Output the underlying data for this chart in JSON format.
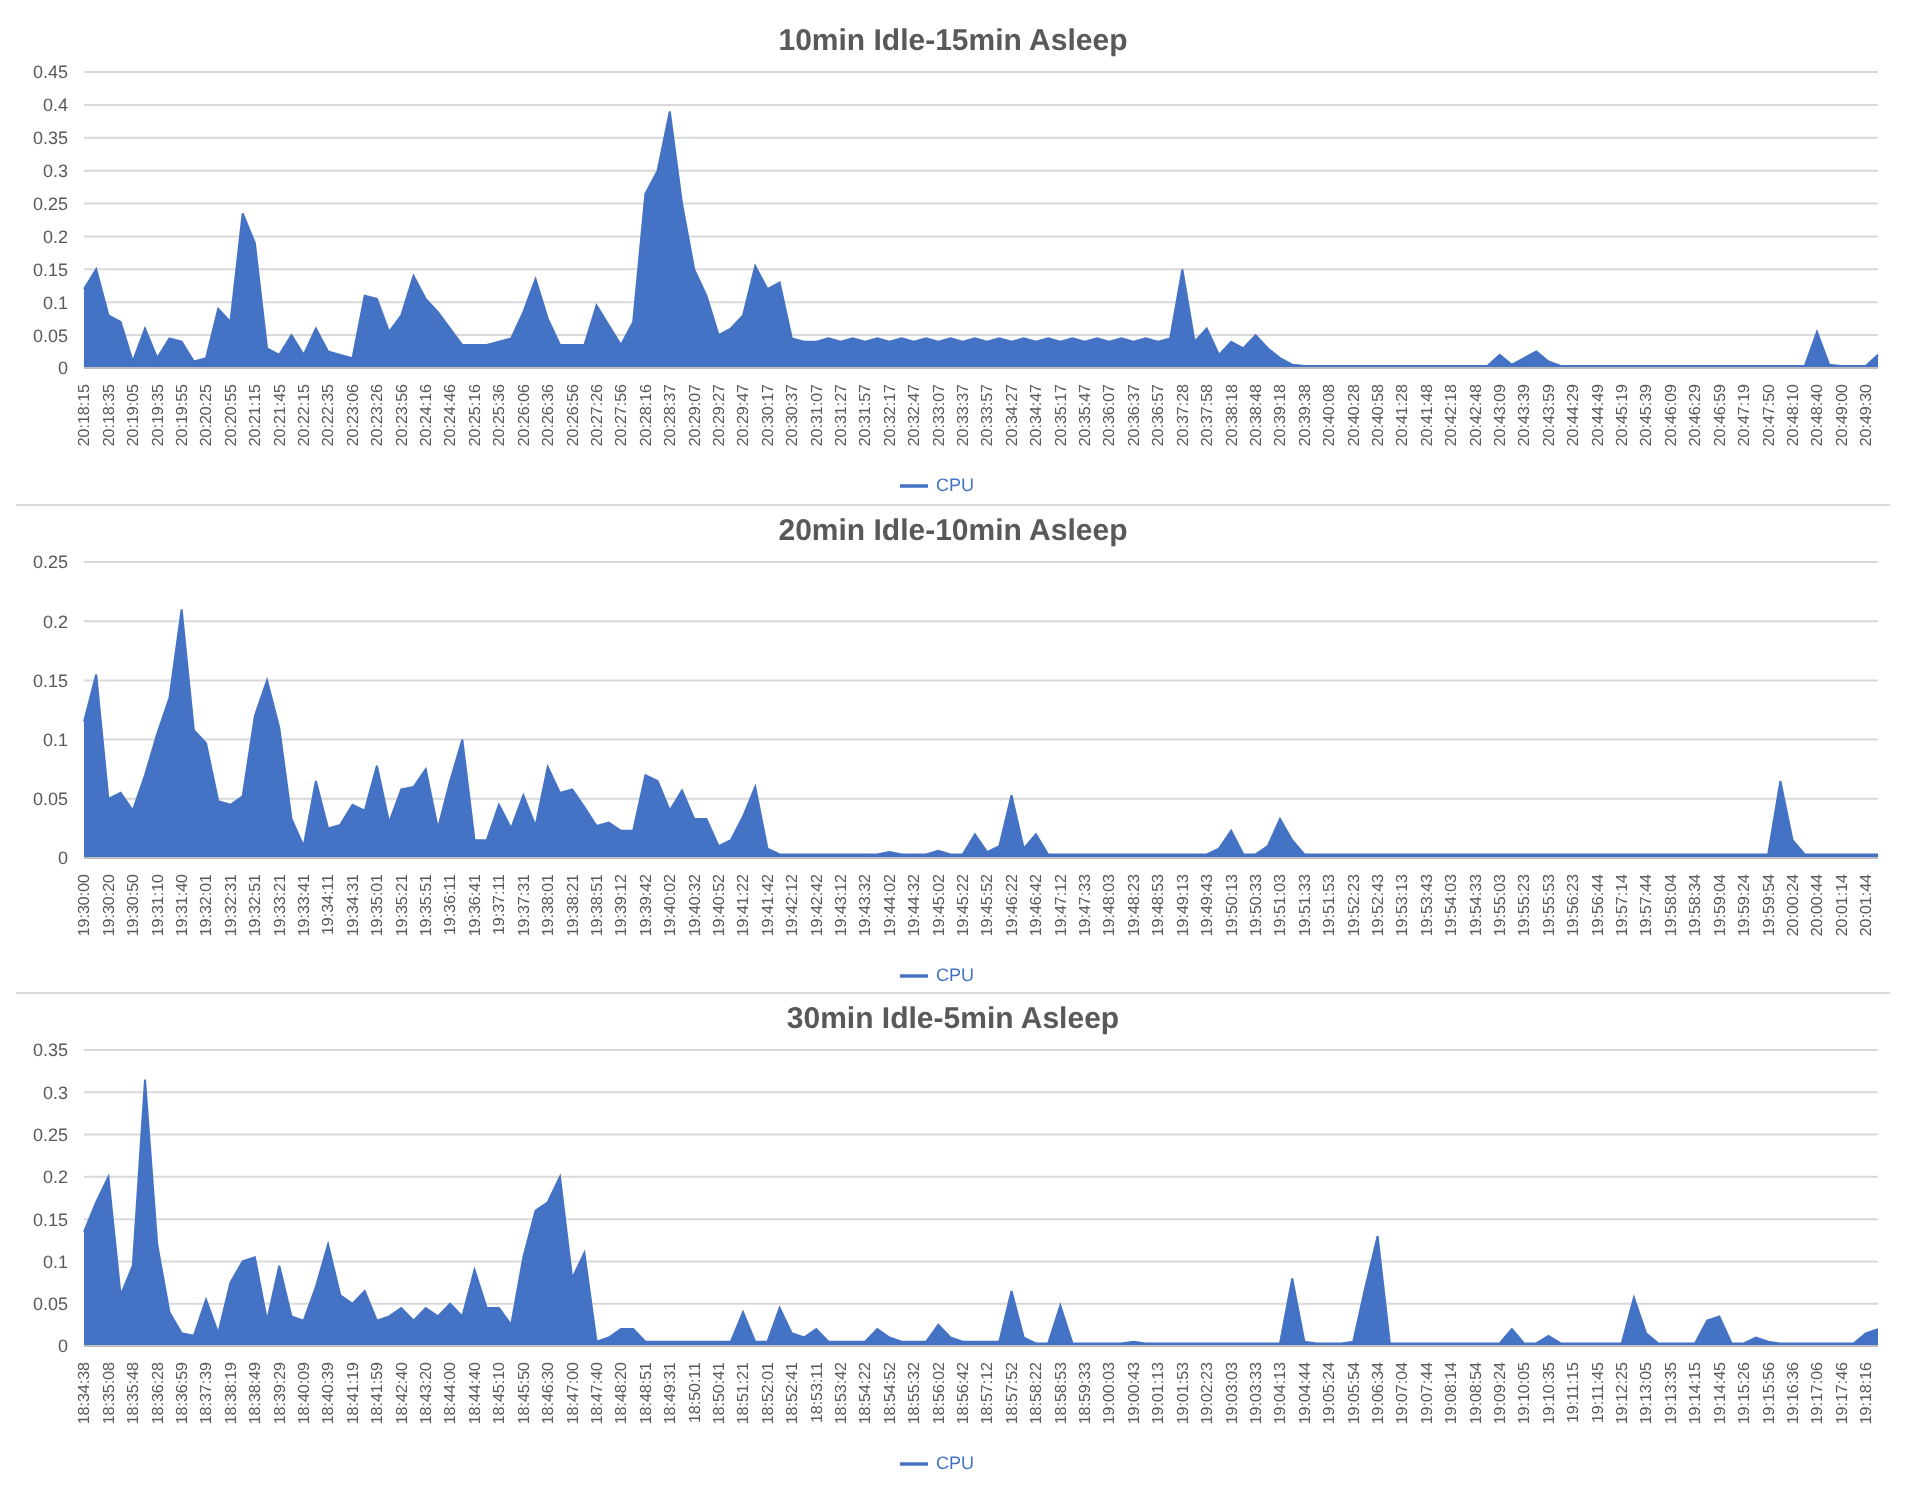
{
  "chart_data": [
    {
      "type": "area",
      "title": "10min Idle-15min Asleep",
      "grid": "y",
      "legend": "bottom",
      "ylim": [
        0,
        0.45
      ],
      "yticks": [
        0,
        0.05,
        0.1,
        0.15,
        0.2,
        0.25,
        0.3,
        0.35,
        0.4,
        0.45
      ],
      "categories": [
        "20:18:15",
        null,
        "20:18:35",
        null,
        "20:19:05",
        null,
        "20:19:35",
        null,
        "20:19:55",
        null,
        "20:20:25",
        null,
        "20:20:55",
        null,
        "20:21:15",
        null,
        "20:21:45",
        null,
        "20:22:15",
        null,
        "20:22:35",
        null,
        "20:23:06",
        null,
        "20:23:26",
        null,
        "20:23:56",
        null,
        "20:24:16",
        null,
        "20:24:46",
        null,
        "20:25:16",
        null,
        "20:25:36",
        null,
        "20:26:06",
        null,
        "20:26:36",
        null,
        "20:26:56",
        null,
        "20:27:26",
        null,
        "20:27:56",
        null,
        "20:28:16",
        null,
        "20:28:37",
        null,
        "20:29:07",
        null,
        "20:29:27",
        null,
        "20:29:47",
        null,
        "20:30:17",
        null,
        "20:30:37",
        null,
        "20:31:07",
        null,
        "20:31:27",
        null,
        "20:31:57",
        null,
        "20:32:17",
        null,
        "20:32:47",
        null,
        "20:33:07",
        null,
        "20:33:37",
        null,
        "20:33:57",
        null,
        "20:34:27",
        null,
        "20:34:47",
        null,
        "20:35:17",
        null,
        "20:35:47",
        null,
        "20:36:07",
        null,
        "20:36:37",
        null,
        "20:36:57",
        null,
        "20:37:28",
        null,
        "20:37:58",
        null,
        "20:38:18",
        null,
        "20:38:48",
        null,
        "20:39:18",
        null,
        "20:39:38",
        null,
        "20:40:08",
        null,
        "20:40:28",
        null,
        "20:40:58",
        null,
        "20:41:28",
        null,
        "20:41:48",
        null,
        "20:42:18",
        null,
        "20:42:48",
        null,
        "20:43:09",
        null,
        "20:43:39",
        null,
        "20:43:59",
        null,
        "20:44:29",
        null,
        "20:44:49",
        null,
        "20:45:19",
        null,
        "20:45:39",
        null,
        "20:46:09",
        null,
        "20:46:29",
        null,
        "20:46:59",
        null,
        "20:47:19",
        null,
        "20:47:50",
        null,
        "20:48:10",
        null,
        "20:48:40",
        null,
        "20:49:00",
        null,
        "20:49:30",
        null
      ],
      "series": [
        {
          "name": "CPU",
          "color": "#4472c4",
          "values": [
            0.12,
            0.15,
            0.08,
            0.07,
            0.01,
            0.06,
            0.015,
            0.045,
            0.04,
            0.01,
            0.015,
            0.09,
            0.07,
            0.235,
            0.19,
            0.03,
            0.02,
            0.05,
            0.02,
            0.06,
            0.025,
            0.02,
            0.015,
            0.11,
            0.105,
            0.055,
            0.08,
            0.14,
            0.105,
            0.085,
            0.06,
            0.035,
            0.035,
            0.035,
            0.04,
            0.045,
            0.085,
            0.135,
            0.075,
            0.035,
            0.035,
            0.035,
            0.095,
            0.065,
            0.035,
            0.07,
            0.265,
            0.3,
            0.39,
            0.25,
            0.15,
            0.11,
            0.05,
            0.06,
            0.08,
            0.155,
            0.12,
            0.13,
            0.045,
            0.04,
            0.04,
            0.045,
            0.04,
            0.045,
            0.04,
            0.045,
            0.04,
            0.045,
            0.04,
            0.045,
            0.04,
            0.045,
            0.04,
            0.045,
            0.04,
            0.045,
            0.04,
            0.045,
            0.04,
            0.045,
            0.04,
            0.045,
            0.04,
            0.045,
            0.04,
            0.045,
            0.04,
            0.045,
            0.04,
            0.045,
            0.15,
            0.04,
            0.06,
            0.02,
            0.04,
            0.03,
            0.05,
            0.03,
            0.015,
            0.005,
            0.003,
            0.003,
            0.003,
            0.003,
            0.003,
            0.003,
            0.003,
            0.003,
            0.003,
            0.003,
            0.003,
            0.003,
            0.003,
            0.003,
            0.003,
            0.003,
            0.02,
            0.005,
            0.015,
            0.025,
            0.01,
            0.003,
            0.003,
            0.003,
            0.003,
            0.003,
            0.003,
            0.003,
            0.003,
            0.003,
            0.003,
            0.003,
            0.003,
            0.003,
            0.003,
            0.003,
            0.003,
            0.003,
            0.003,
            0.003,
            0.003,
            0.003,
            0.055,
            0.005,
            0.003,
            0.003,
            0.003,
            0.02
          ]
        }
      ]
    },
    {
      "type": "area",
      "title": "20min Idle-10min Asleep",
      "grid": "y",
      "legend": "bottom",
      "ylim": [
        0,
        0.25
      ],
      "yticks": [
        0,
        0.05,
        0.1,
        0.15,
        0.2,
        0.25
      ],
      "categories": [
        "19:30:00",
        null,
        "19:30:20",
        null,
        "19:30:50",
        null,
        "19:31:10",
        null,
        "19:31:40",
        null,
        "19:32:01",
        null,
        "19:32:31",
        null,
        "19:32:51",
        null,
        "19:33:21",
        null,
        "19:33:41",
        null,
        "19:34:11",
        null,
        "19:34:31",
        null,
        "19:35:01",
        null,
        "19:35:21",
        null,
        "19:35:51",
        null,
        "19:36:11",
        null,
        "19:36:41",
        null,
        "19:37:11",
        null,
        "19:37:31",
        null,
        "19:38:01",
        null,
        "19:38:21",
        null,
        "19:38:51",
        null,
        "19:39:12",
        null,
        "19:39:42",
        null,
        "19:40:02",
        null,
        "19:40:32",
        null,
        "19:40:52",
        null,
        "19:41:22",
        null,
        "19:41:42",
        null,
        "19:42:12",
        null,
        "19:42:42",
        null,
        "19:43:12",
        null,
        "19:43:32",
        null,
        "19:44:02",
        null,
        "19:44:32",
        null,
        "19:45:02",
        null,
        "19:45:22",
        null,
        "19:45:52",
        null,
        "19:46:22",
        null,
        "19:46:42",
        null,
        "19:47:12",
        null,
        "19:47:33",
        null,
        "19:48:03",
        null,
        "19:48:23",
        null,
        "19:48:53",
        null,
        "19:49:13",
        null,
        "19:49:43",
        null,
        "19:50:13",
        null,
        "19:50:33",
        null,
        "19:51:03",
        null,
        "19:51:33",
        null,
        "19:51:53",
        null,
        "19:52:23",
        null,
        "19:52:43",
        null,
        "19:53:13",
        null,
        "19:53:43",
        null,
        "19:54:03",
        null,
        "19:54:33",
        null,
        "19:55:03",
        null,
        "19:55:23",
        null,
        "19:55:53",
        null,
        "19:56:23",
        null,
        "19:56:44",
        null,
        "19:57:14",
        null,
        "19:57:44",
        null,
        "19:58:04",
        null,
        "19:58:34",
        null,
        "19:59:04",
        null,
        "19:59:24",
        null,
        "19:59:54",
        null,
        "20:00:24",
        null,
        "20:00:44",
        null,
        "20:01:14",
        null,
        "20:01:44",
        null
      ],
      "series": [
        {
          "name": "CPU",
          "color": "#4472c4",
          "values": [
            0.115,
            0.155,
            0.05,
            0.055,
            0.04,
            0.07,
            0.105,
            0.135,
            0.21,
            0.108,
            0.097,
            0.048,
            0.045,
            0.052,
            0.12,
            0.15,
            0.11,
            0.033,
            0.01,
            0.065,
            0.025,
            0.028,
            0.045,
            0.04,
            0.078,
            0.03,
            0.058,
            0.06,
            0.075,
            0.025,
            0.065,
            0.1,
            0.015,
            0.015,
            0.045,
            0.025,
            0.053,
            0.027,
            0.077,
            0.055,
            0.058,
            0.043,
            0.027,
            0.03,
            0.023,
            0.023,
            0.07,
            0.065,
            0.04,
            0.057,
            0.033,
            0.033,
            0.01,
            0.015,
            0.035,
            0.06,
            0.008,
            0.003,
            0.003,
            0.003,
            0.003,
            0.003,
            0.003,
            0.003,
            0.003,
            0.003,
            0.005,
            0.003,
            0.003,
            0.003,
            0.006,
            0.003,
            0.003,
            0.02,
            0.005,
            0.01,
            0.053,
            0.008,
            0.02,
            0.003,
            0.003,
            0.003,
            0.003,
            0.003,
            0.003,
            0.003,
            0.003,
            0.003,
            0.003,
            0.003,
            0.003,
            0.003,
            0.003,
            0.008,
            0.023,
            0.003,
            0.003,
            0.01,
            0.033,
            0.015,
            0.003,
            0.003,
            0.003,
            0.003,
            0.003,
            0.003,
            0.003,
            0.003,
            0.003,
            0.003,
            0.003,
            0.003,
            0.003,
            0.003,
            0.003,
            0.003,
            0.003,
            0.003,
            0.003,
            0.003,
            0.003,
            0.003,
            0.003,
            0.003,
            0.003,
            0.003,
            0.003,
            0.003,
            0.003,
            0.003,
            0.003,
            0.003,
            0.003,
            0.003,
            0.003,
            0.003,
            0.003,
            0.003,
            0.003,
            0.065,
            0.015,
            0.003,
            0.003,
            0.003,
            0.003,
            0.003,
            0.003,
            0.003
          ]
        }
      ]
    },
    {
      "type": "area",
      "title": "30min Idle-5min Asleep",
      "grid": "y",
      "legend": "bottom",
      "ylim": [
        0,
        0.35
      ],
      "yticks": [
        0,
        0.05,
        0.1,
        0.15,
        0.2,
        0.25,
        0.3,
        0.35
      ],
      "categories": [
        "18:34:38",
        null,
        "18:35:08",
        null,
        "18:35:48",
        null,
        "18:36:28",
        null,
        "18:36:59",
        null,
        "18:37:39",
        null,
        "18:38:19",
        null,
        "18:38:49",
        null,
        "18:39:29",
        null,
        "18:40:09",
        null,
        "18:40:39",
        null,
        "18:41:19",
        null,
        "18:41:59",
        null,
        "18:42:40",
        null,
        "18:43:20",
        null,
        "18:44:00",
        null,
        "18:44:40",
        null,
        "18:45:10",
        null,
        "18:45:50",
        null,
        "18:46:30",
        null,
        "18:47:00",
        null,
        "18:47:40",
        null,
        "18:48:20",
        null,
        "18:48:51",
        null,
        "18:49:31",
        null,
        "18:50:11",
        null,
        "18:50:41",
        null,
        "18:51:21",
        null,
        "18:52:01",
        null,
        "18:52:41",
        null,
        "18:53:11",
        null,
        "18:53:42",
        null,
        "18:54:22",
        null,
        "18:54:52",
        null,
        "18:55:32",
        null,
        "18:56:02",
        null,
        "18:56:42",
        null,
        "18:57:12",
        null,
        "18:57:52",
        null,
        "18:58:22",
        null,
        "18:58:53",
        null,
        "18:59:33",
        null,
        "19:00:03",
        null,
        "19:00:43",
        null,
        "19:01:13",
        null,
        "19:01:53",
        null,
        "19:02:23",
        null,
        "19:03:03",
        null,
        "19:03:33",
        null,
        "19:04:13",
        null,
        "19:04:44",
        null,
        "19:05:24",
        null,
        "19:05:54",
        null,
        "19:06:34",
        null,
        "19:07:04",
        null,
        "19:07:44",
        null,
        "19:08:14",
        null,
        "19:08:54",
        null,
        "19:09:24",
        null,
        "19:10:05",
        null,
        "19:10:35",
        null,
        "19:11:15",
        null,
        "19:11:45",
        null,
        "19:12:25",
        null,
        "19:13:05",
        null,
        "19:13:35",
        null,
        "19:14:15",
        null,
        "19:14:45",
        null,
        "19:15:26",
        null,
        "19:15:56",
        null,
        "19:16:36",
        null,
        "19:17:06",
        null,
        "19:17:46",
        null,
        "19:18:16",
        null
      ],
      "series": [
        {
          "name": "CPU",
          "color": "#4472c4",
          "values": [
            0.135,
            0.17,
            0.2,
            0.06,
            0.095,
            0.315,
            0.12,
            0.04,
            0.015,
            0.012,
            0.055,
            0.015,
            0.075,
            0.1,
            0.105,
            0.03,
            0.095,
            0.035,
            0.03,
            0.07,
            0.12,
            0.06,
            0.05,
            0.065,
            0.03,
            0.035,
            0.045,
            0.03,
            0.045,
            0.035,
            0.05,
            0.035,
            0.09,
            0.045,
            0.045,
            0.025,
            0.105,
            0.16,
            0.17,
            0.2,
            0.08,
            0.11,
            0.005,
            0.01,
            0.02,
            0.02,
            0.005,
            0.005,
            0.005,
            0.005,
            0.005,
            0.005,
            0.005,
            0.005,
            0.04,
            0.005,
            0.005,
            0.045,
            0.015,
            0.01,
            0.02,
            0.005,
            0.005,
            0.005,
            0.005,
            0.02,
            0.01,
            0.005,
            0.005,
            0.005,
            0.025,
            0.01,
            0.005,
            0.005,
            0.005,
            0.005,
            0.065,
            0.01,
            0.003,
            0.003,
            0.048,
            0.003,
            0.003,
            0.003,
            0.003,
            0.003,
            0.005,
            0.003,
            0.003,
            0.003,
            0.003,
            0.003,
            0.003,
            0.003,
            0.003,
            0.003,
            0.003,
            0.003,
            0.003,
            0.08,
            0.005,
            0.003,
            0.003,
            0.003,
            0.005,
            0.07,
            0.13,
            0.003,
            0.003,
            0.003,
            0.003,
            0.003,
            0.003,
            0.003,
            0.003,
            0.003,
            0.003,
            0.02,
            0.003,
            0.003,
            0.012,
            0.003,
            0.003,
            0.003,
            0.003,
            0.003,
            0.003,
            0.057,
            0.015,
            0.003,
            0.003,
            0.003,
            0.003,
            0.03,
            0.035,
            0.003,
            0.003,
            0.01,
            0.005,
            0.003,
            0.003,
            0.003,
            0.003,
            0.003,
            0.003,
            0.003,
            0.015,
            0.02
          ]
        }
      ]
    }
  ]
}
